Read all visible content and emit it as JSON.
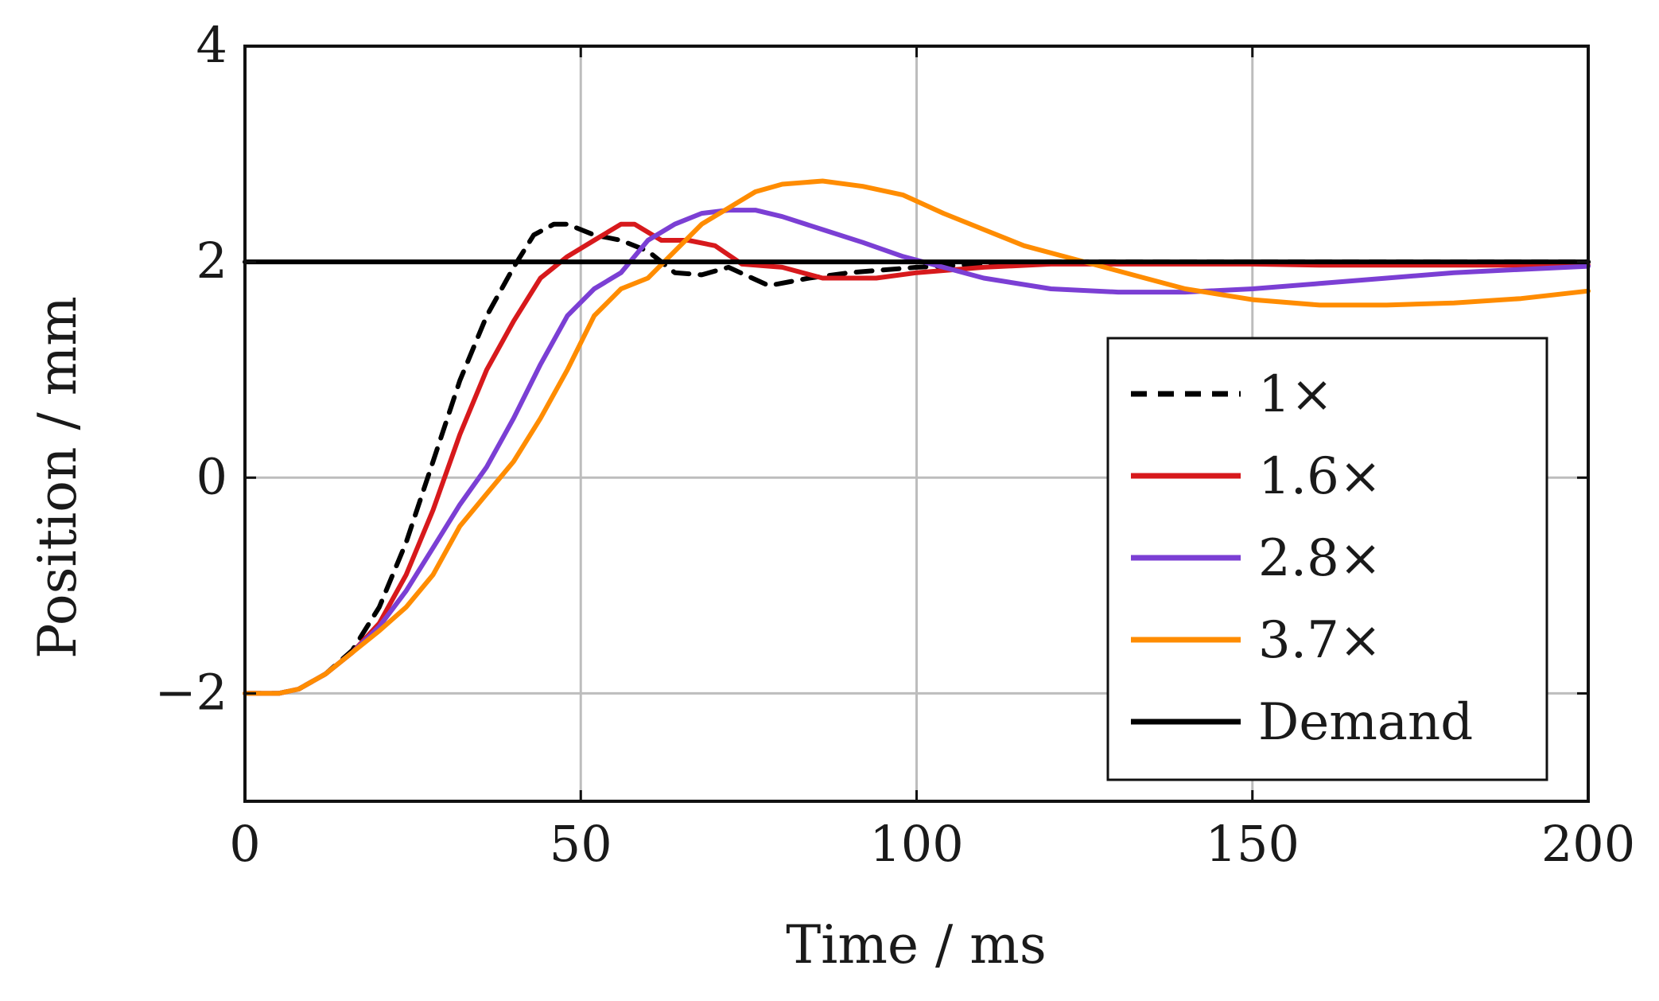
{
  "chart_data": {
    "type": "line",
    "title": "",
    "xlabel": "Time / ms",
    "ylabel": "Position / mm",
    "xlim": [
      0,
      200
    ],
    "ylim": [
      -3,
      4
    ],
    "xticks": [
      0,
      50,
      100,
      150,
      200
    ],
    "yticks": [
      -2,
      0,
      2,
      4
    ],
    "xtick_labels": [
      "0",
      "50",
      "100",
      "150",
      "200"
    ],
    "ytick_labels": [
      "−2",
      "0",
      "2",
      "4"
    ],
    "grid": true,
    "legend_position": "bottom-right",
    "series": [
      {
        "name": "1×",
        "color": "#000000",
        "dashed": true,
        "x": [
          0,
          5,
          8,
          12,
          16,
          20,
          24,
          28,
          32,
          36,
          40,
          43,
          46,
          48,
          52,
          56,
          60,
          64,
          68,
          72,
          78,
          84,
          90,
          100,
          110,
          120,
          130,
          140,
          150,
          160,
          170,
          180,
          190,
          200
        ],
        "y": [
          -2.0,
          -2.0,
          -1.96,
          -1.82,
          -1.6,
          -1.2,
          -0.6,
          0.15,
          0.9,
          1.5,
          1.95,
          2.25,
          2.35,
          2.35,
          2.25,
          2.2,
          2.1,
          1.9,
          1.88,
          1.95,
          1.78,
          1.85,
          1.9,
          1.95,
          1.98,
          2.0,
          2.0,
          2.0,
          2.0,
          2.0,
          2.0,
          2.0,
          2.0,
          2.0
        ]
      },
      {
        "name": "1.6×",
        "color": "#d7191c",
        "dashed": false,
        "x": [
          0,
          5,
          8,
          12,
          16,
          20,
          24,
          28,
          32,
          36,
          40,
          44,
          48,
          52,
          56,
          58,
          62,
          66,
          70,
          74,
          80,
          86,
          94,
          100,
          110,
          120,
          130,
          140,
          150,
          160,
          170,
          180,
          190,
          200
        ],
        "y": [
          -2.0,
          -2.0,
          -1.96,
          -1.82,
          -1.62,
          -1.35,
          -0.9,
          -0.3,
          0.4,
          1.0,
          1.45,
          1.85,
          2.05,
          2.2,
          2.35,
          2.35,
          2.2,
          2.2,
          2.15,
          1.98,
          1.95,
          1.85,
          1.85,
          1.9,
          1.95,
          1.98,
          1.98,
          1.98,
          1.98,
          1.97,
          1.97,
          1.97,
          1.97,
          1.97
        ]
      },
      {
        "name": "2.8×",
        "color": "#7b3fd4",
        "dashed": false,
        "x": [
          0,
          5,
          8,
          12,
          16,
          20,
          24,
          28,
          32,
          36,
          40,
          44,
          48,
          52,
          56,
          60,
          64,
          68,
          72,
          76,
          80,
          86,
          92,
          98,
          104,
          110,
          120,
          130,
          140,
          150,
          160,
          170,
          180,
          190,
          200
        ],
        "y": [
          -2.0,
          -2.0,
          -1.96,
          -1.82,
          -1.62,
          -1.38,
          -1.05,
          -0.65,
          -0.25,
          0.1,
          0.55,
          1.05,
          1.5,
          1.75,
          1.9,
          2.2,
          2.35,
          2.45,
          2.48,
          2.48,
          2.42,
          2.3,
          2.18,
          2.05,
          1.95,
          1.85,
          1.75,
          1.72,
          1.72,
          1.75,
          1.8,
          1.85,
          1.9,
          1.93,
          1.96
        ]
      },
      {
        "name": "3.7×",
        "color": "#ff8c00",
        "dashed": false,
        "x": [
          0,
          5,
          8,
          12,
          16,
          20,
          24,
          28,
          32,
          36,
          40,
          44,
          48,
          52,
          56,
          60,
          64,
          68,
          72,
          76,
          80,
          86,
          92,
          98,
          104,
          110,
          116,
          122,
          128,
          134,
          140,
          150,
          160,
          170,
          180,
          190,
          200
        ],
        "y": [
          -2.0,
          -2.0,
          -1.96,
          -1.82,
          -1.62,
          -1.42,
          -1.2,
          -0.9,
          -0.45,
          -0.15,
          0.15,
          0.55,
          1.0,
          1.5,
          1.75,
          1.85,
          2.1,
          2.35,
          2.5,
          2.65,
          2.72,
          2.75,
          2.7,
          2.62,
          2.45,
          2.3,
          2.15,
          2.05,
          1.95,
          1.85,
          1.75,
          1.65,
          1.6,
          1.6,
          1.62,
          1.66,
          1.73
        ]
      },
      {
        "name": "Demand",
        "color": "#000000",
        "dashed": false,
        "x": [
          0,
          200
        ],
        "y": [
          2.0,
          2.0
        ]
      }
    ]
  }
}
